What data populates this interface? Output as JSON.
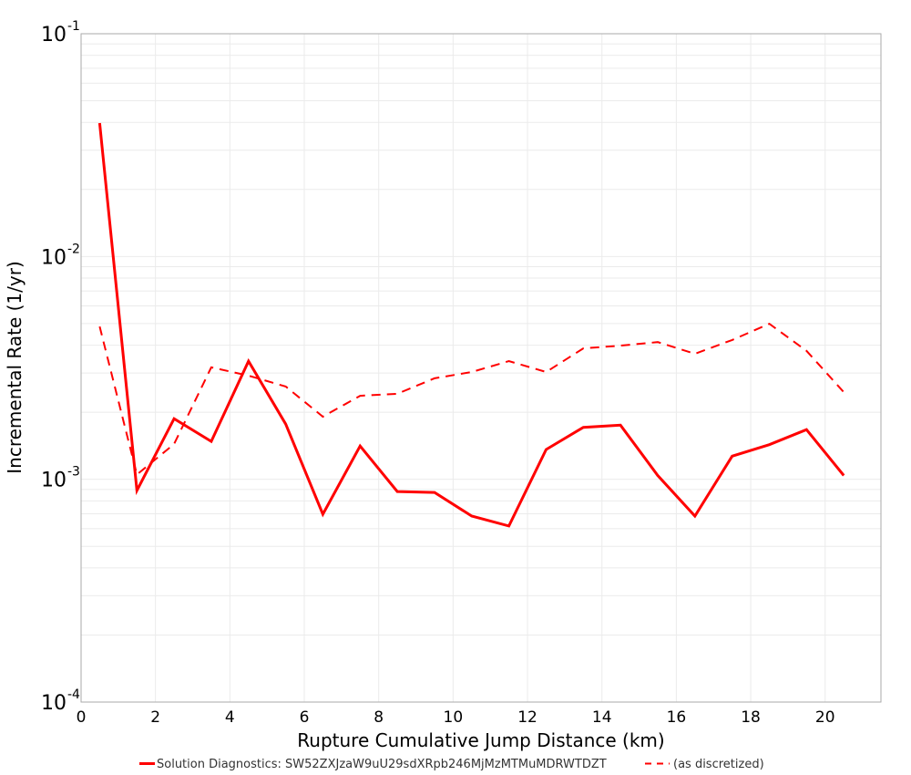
{
  "chart_data": {
    "type": "line",
    "title": "",
    "xlabel": "Rupture Cumulative Jump Distance (km)",
    "ylabel": "Incremental Rate (1/yr)",
    "xlim": [
      0,
      21.5
    ],
    "ylim": [
      0.0001,
      0.1
    ],
    "yscale": "log",
    "grid": true,
    "legend_position": "bottom",
    "x_ticks": [
      0,
      2,
      4,
      6,
      8,
      10,
      12,
      14,
      16,
      18,
      20
    ],
    "x_tick_labels": [
      "0",
      "2",
      "4",
      "6",
      "8",
      "10",
      "12",
      "14",
      "16",
      "18",
      "20"
    ],
    "y_ticks": [
      {
        "value": 0.1,
        "base": "10",
        "exp": "-1"
      },
      {
        "value": 0.01,
        "base": "10",
        "exp": "-2"
      },
      {
        "value": 0.001,
        "base": "10",
        "exp": "-3"
      },
      {
        "value": 0.0001,
        "base": "10",
        "exp": "-4"
      }
    ],
    "x": [
      0.5,
      1.5,
      2.5,
      3.5,
      4.5,
      5.5,
      6.5,
      7.5,
      8.5,
      9.5,
      10.5,
      11.5,
      12.5,
      13.5,
      14.5,
      15.5,
      16.5,
      17.5,
      18.5,
      19.5,
      20.5
    ],
    "series": [
      {
        "name": "Solution Diagnostics: SW52ZXJzaW9uU29sdXRpb246MjMzMTMuMDRWTDZT",
        "style": "solid",
        "color": "#ff0000",
        "values": [
          0.0397,
          0.00089,
          0.00187,
          0.00148,
          0.00339,
          0.00177,
          0.000697,
          0.00141,
          0.000881,
          0.000873,
          0.000684,
          0.000617,
          0.00136,
          0.00171,
          0.00175,
          0.00104,
          0.000684,
          0.00127,
          0.00143,
          0.00167,
          0.00104
        ]
      },
      {
        "name": "(as discretized)",
        "style": "dashed",
        "color": "#ff0000",
        "values": [
          0.00485,
          0.00105,
          0.00144,
          0.00318,
          0.00292,
          0.00261,
          0.00191,
          0.00237,
          0.00242,
          0.00284,
          0.00303,
          0.00339,
          0.00303,
          0.00387,
          0.00398,
          0.00413,
          0.00366,
          0.00422,
          0.00499,
          0.00377,
          0.00246
        ]
      }
    ]
  },
  "legend": {
    "items": [
      {
        "label": "Solution Diagnostics: SW52ZXJzaW9uU29sdXRpb246MjMzMTMuMDRWTDZT",
        "style": "solid"
      },
      {
        "label": "(as discretized)",
        "style": "dashed"
      }
    ]
  }
}
